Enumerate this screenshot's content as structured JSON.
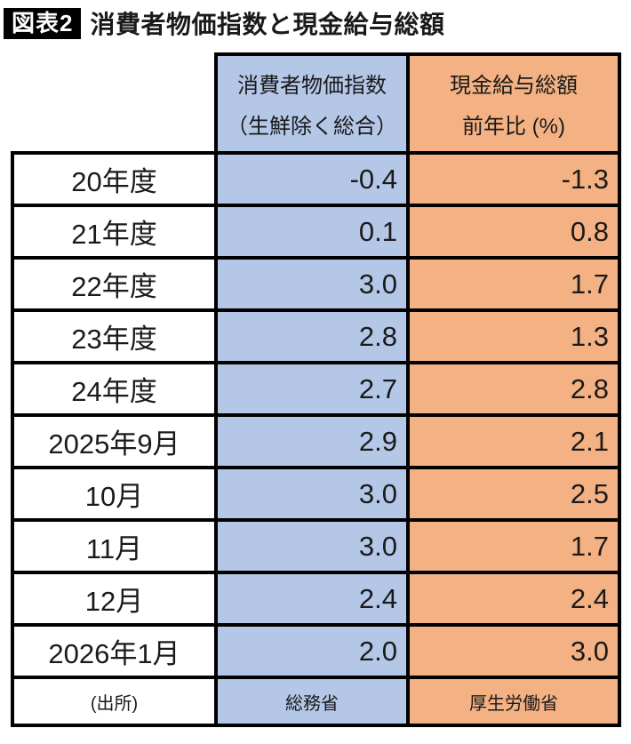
{
  "title": {
    "badge": "図表2",
    "text": "消費者物価指数と現金給与総額"
  },
  "table": {
    "columns": {
      "cpi": {
        "line1": "消費者物価指数",
        "line2": "（生鮮除く総合）",
        "color": "#b4c7e7"
      },
      "wage": {
        "line1": "現金給与総額",
        "line2": "前年比 (%)",
        "color": "#f4b183"
      }
    },
    "rows": [
      {
        "label": "20年度",
        "cpi": "-0.4",
        "wage": "-1.3"
      },
      {
        "label": "21年度",
        "cpi": "0.1",
        "wage": "0.8"
      },
      {
        "label": "22年度",
        "cpi": "3.0",
        "wage": "1.7"
      },
      {
        "label": "23年度",
        "cpi": "2.8",
        "wage": "1.3"
      },
      {
        "label": "24年度",
        "cpi": "2.7",
        "wage": "2.8"
      },
      {
        "label": "2025年9月",
        "cpi": "2.9",
        "wage": "2.1"
      },
      {
        "label": "10月",
        "cpi": "3.0",
        "wage": "2.5"
      },
      {
        "label": "11月",
        "cpi": "3.0",
        "wage": "1.7"
      },
      {
        "label": "12月",
        "cpi": "2.4",
        "wage": "2.4"
      },
      {
        "label": "2026年1月",
        "cpi": "2.0",
        "wage": "3.0"
      }
    ],
    "footer": {
      "label": "(出所)",
      "cpi_source": "総務省",
      "wage_source": "厚生労働省"
    }
  },
  "chart_data": {
    "type": "table",
    "title": "消費者物価指数と現金給与総額",
    "categories": [
      "20年度",
      "21年度",
      "22年度",
      "23年度",
      "24年度",
      "2025年9月",
      "10月",
      "11月",
      "12月",
      "2026年1月"
    ],
    "series": [
      {
        "name": "消費者物価指数（生鮮除く総合）",
        "source": "総務省",
        "values": [
          -0.4,
          0.1,
          3.0,
          2.8,
          2.7,
          2.9,
          3.0,
          3.0,
          2.4,
          2.0
        ]
      },
      {
        "name": "現金給与総額 前年比 (%)",
        "source": "厚生労働省",
        "values": [
          -1.3,
          0.8,
          1.7,
          1.3,
          2.8,
          2.1,
          2.5,
          1.7,
          2.4,
          3.0
        ]
      }
    ],
    "colors": {
      "cpi_column": "#b4c7e7",
      "wage_column": "#f4b183"
    }
  }
}
